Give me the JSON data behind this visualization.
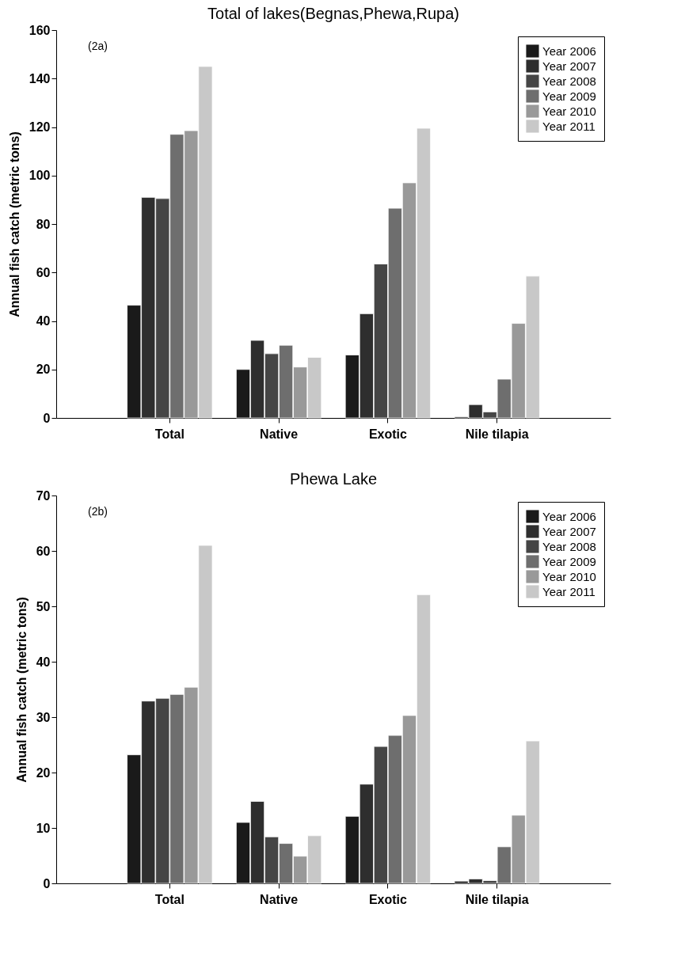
{
  "chart_data": [
    {
      "type": "bar",
      "title": "Total of lakes(Begnas,Phewa,Rupa)",
      "annotations": [
        "(2a)"
      ],
      "ylabel": "Annual fish catch (metric tons)",
      "categories": [
        "Total",
        "Native",
        "Exotic",
        "Nile tilapia"
      ],
      "ylim": [
        0,
        160
      ],
      "yticks": [
        0,
        20,
        40,
        60,
        80,
        100,
        120,
        140,
        160
      ],
      "legend": "top right",
      "series": [
        {
          "name": "Year 2006",
          "color": "#1a1a1a",
          "values": [
            46.5,
            20,
            26,
            0.5
          ]
        },
        {
          "name": "Year 2007",
          "color": "#2e2e2e",
          "values": [
            91,
            32,
            43,
            5.5
          ]
        },
        {
          "name": "Year 2008",
          "color": "#454545",
          "values": [
            90.5,
            26.5,
            63.5,
            2.5
          ]
        },
        {
          "name": "Year 2009",
          "color": "#6e6e6e",
          "values": [
            117,
            30,
            86.5,
            16
          ]
        },
        {
          "name": "Year 2010",
          "color": "#999999",
          "values": [
            118.5,
            21,
            97,
            39
          ]
        },
        {
          "name": "Year 2011",
          "color": "#c8c8c8",
          "values": [
            145,
            25,
            119.5,
            58.5
          ]
        }
      ]
    },
    {
      "type": "bar",
      "title": "Phewa Lake",
      "annotations": [
        "(2b)"
      ],
      "ylabel": "Annual fish catch (metric tons)",
      "categories": [
        "Total",
        "Native",
        "Exotic",
        "Nile tilapia"
      ],
      "ylim": [
        0,
        70
      ],
      "yticks": [
        0,
        10,
        20,
        30,
        40,
        50,
        60,
        70
      ],
      "legend": "top right",
      "series": [
        {
          "name": "Year 2006",
          "color": "#1a1a1a",
          "values": [
            23.2,
            11,
            12.1,
            0.4
          ]
        },
        {
          "name": "Year 2007",
          "color": "#2e2e2e",
          "values": [
            32.9,
            14.8,
            17.9,
            0.8
          ]
        },
        {
          "name": "Year 2008",
          "color": "#454545",
          "values": [
            33.4,
            8.4,
            24.7,
            0.5
          ]
        },
        {
          "name": "Year 2009",
          "color": "#6e6e6e",
          "values": [
            34.1,
            7.2,
            26.7,
            6.6
          ]
        },
        {
          "name": "Year 2010",
          "color": "#999999",
          "values": [
            35.4,
            4.9,
            30.3,
            12.3
          ]
        },
        {
          "name": "Year 2011",
          "color": "#c8c8c8",
          "values": [
            61,
            8.6,
            52.1,
            25.7
          ]
        }
      ]
    }
  ]
}
